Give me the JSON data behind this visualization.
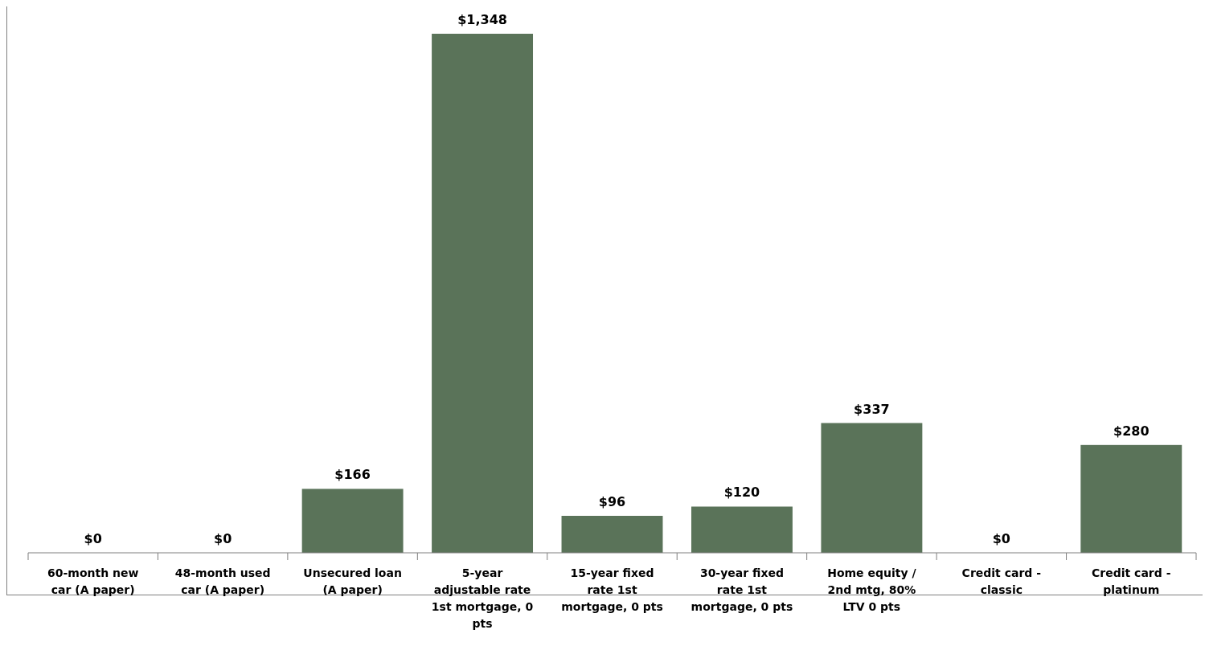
{
  "chart_data": {
    "type": "bar",
    "categories": [
      "60-month new car (A paper)",
      "48-month used car (A paper)",
      "Unsecured loan (A paper)",
      "5-year adjustable rate 1st mortgage, 0 pts",
      "15-year fixed rate 1st mortgage, 0 pts",
      "30-year fixed rate 1st mortgage, 0 pts",
      "Home equity / 2nd mtg, 80% LTV 0 pts",
      "Credit card - classic",
      "Credit card - platinum"
    ],
    "values": [
      0,
      0,
      166,
      1348,
      96,
      120,
      337,
      0,
      280
    ],
    "value_labels": [
      "$0",
      "$0",
      "$166",
      "$1,348",
      "$96",
      "$120",
      "$337",
      "$0",
      "$280"
    ],
    "color": "#5a7359"
  }
}
